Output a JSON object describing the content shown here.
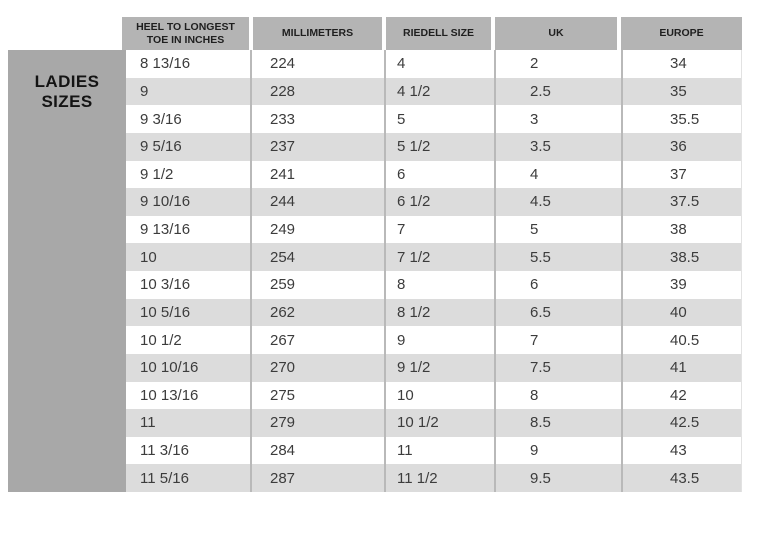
{
  "side_panel": {
    "label_line1": "LADIES",
    "label_line2": "SIZES",
    "background": "#a8a8a8"
  },
  "chart_data": {
    "type": "table",
    "title": "Ladies Sizes",
    "columns": [
      "HEEL TO LONGEST TOE IN INCHES",
      "MILLIMETERS",
      "RIEDELL SIZE",
      "UK",
      "EUROPE"
    ],
    "rows": [
      [
        "8 13/16",
        "224",
        "4",
        "2",
        "34"
      ],
      [
        "9",
        "228",
        "4 1/2",
        "2.5",
        "35"
      ],
      [
        "9 3/16",
        "233",
        "5",
        "3",
        "35.5"
      ],
      [
        "9 5/16",
        "237",
        "5 1/2",
        "3.5",
        "36"
      ],
      [
        "9 1/2",
        "241",
        "6",
        "4",
        "37"
      ],
      [
        "9 10/16",
        "244",
        "6 1/2",
        "4.5",
        "37.5"
      ],
      [
        "9 13/16",
        "249",
        "7",
        "5",
        "38"
      ],
      [
        "10",
        "254",
        "7 1/2",
        "5.5",
        "38.5"
      ],
      [
        "10 3/16",
        "259",
        "8",
        "6",
        "39"
      ],
      [
        "10 5/16",
        "262",
        "8 1/2",
        "6.5",
        "40"
      ],
      [
        "10 1/2",
        "267",
        "9",
        "7",
        "40.5"
      ],
      [
        "10 10/16",
        "270",
        "9 1/2",
        "7.5",
        "41"
      ],
      [
        "10 13/16",
        "275",
        "10",
        "8",
        "42"
      ],
      [
        "11",
        "279",
        "10 1/2",
        "8.5",
        "42.5"
      ],
      [
        "11 3/16",
        "284",
        "11",
        "9",
        "43"
      ],
      [
        "11 5/16",
        "287",
        "11 1/2",
        "9.5",
        "43.5"
      ]
    ],
    "layout": {
      "striped": true,
      "stripe_color": "#dcdcdc",
      "header_color": "#b4b4b4",
      "grid_line_color": "#b9b9b9",
      "legend": "none"
    }
  }
}
